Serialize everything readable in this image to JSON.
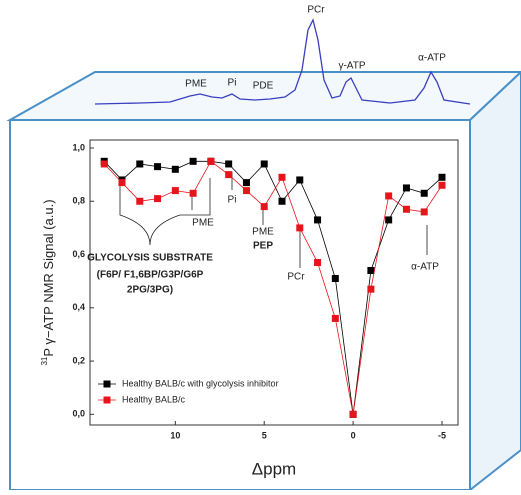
{
  "chart_data": {
    "type": "line",
    "x_label": "Δppm",
    "y_label": "P γ−ATP NMR Signal (a.u.)",
    "y_label_superscript": "31",
    "x": [
      14,
      13,
      12,
      11,
      10,
      9,
      8,
      7,
      6,
      5,
      4,
      3,
      2,
      1,
      0,
      -1,
      -2,
      -3,
      -4,
      -5
    ],
    "series": [
      {
        "name": "Healthy BALB/c with glycolysis inhibitor",
        "color": "#000000",
        "values": [
          0.95,
          0.88,
          0.94,
          0.93,
          0.92,
          0.95,
          0.95,
          0.94,
          0.87,
          0.94,
          0.8,
          0.88,
          0.73,
          0.51,
          0.0,
          0.54,
          0.73,
          0.85,
          0.83,
          0.89
        ]
      },
      {
        "name": "Healthy BALB/c",
        "color": "#e8141b",
        "values": [
          0.94,
          0.87,
          0.8,
          0.81,
          0.84,
          0.83,
          0.95,
          0.9,
          0.84,
          0.78,
          0.89,
          0.7,
          0.57,
          0.36,
          0.0,
          0.47,
          0.82,
          0.77,
          0.76,
          0.86
        ]
      }
    ],
    "xlim": [
      14.8,
      -5.9
    ],
    "xticks": [
      10,
      5,
      0,
      -5
    ],
    "ylim": [
      -0.04,
      1.03
    ],
    "yticks": [
      {
        "value": 0,
        "label": "0,0"
      },
      {
        "value": 0.2,
        "label": "0,2"
      },
      {
        "value": 0.4,
        "label": "0,4"
      },
      {
        "value": 0.6,
        "label": "0,6"
      },
      {
        "value": 0.8,
        "label": "0,8"
      },
      {
        "value": 1.0,
        "label": "1,0"
      }
    ],
    "legend_position": "lower left",
    "annotations": [
      "PME",
      "Pi",
      "PME",
      "PEP",
      "PCr",
      "α-ATP",
      "GLYCOLYSIS SUBSTRATE",
      "(F6P/ F1,6BP/G3P/G6P",
      "2PG/3PG)"
    ],
    "spectrum_labels": [
      "PME",
      "Pi",
      "PDE",
      "PCr",
      "γ-ATP",
      "α-ATP"
    ]
  }
}
